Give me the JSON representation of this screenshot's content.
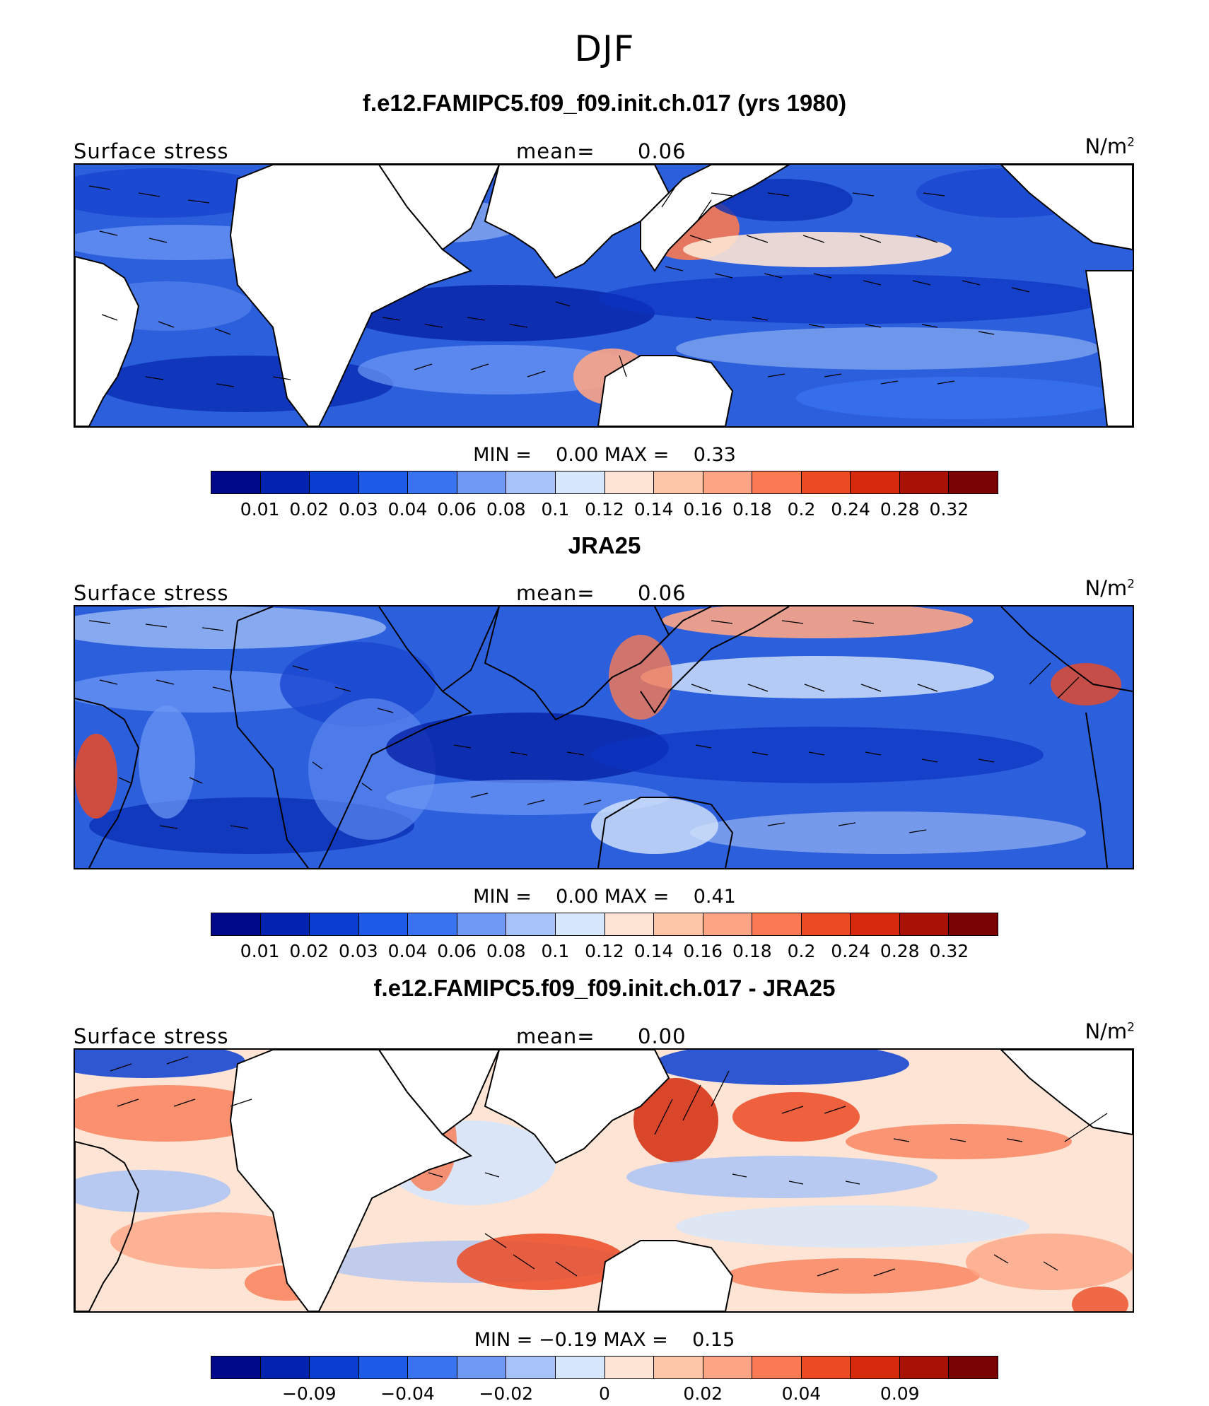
{
  "figure": {
    "season": "DJF"
  },
  "panels": [
    {
      "title": "f.e12.FAMIPC5.f09_f09.init.ch.017 (yrs 1980)",
      "field_label": "Surface stress",
      "mean_label": "mean=",
      "mean_value": "0.06",
      "unit": "N/m",
      "unit_exp": "2",
      "min_label": "MIN =",
      "min_value": "0.00",
      "max_label": "MAX =",
      "max_value": "0.33",
      "scheme": "abs"
    },
    {
      "title": "JRA25",
      "field_label": "Surface stress",
      "mean_label": "mean=",
      "mean_value": "0.06",
      "unit": "N/m",
      "unit_exp": "2",
      "min_label": "MIN =",
      "min_value": "0.00",
      "max_label": "MAX =",
      "max_value": "0.41",
      "scheme": "abs"
    },
    {
      "title": "f.e12.FAMIPC5.f09_f09.init.ch.017 - JRA25",
      "field_label": "Surface stress",
      "mean_label": "mean=",
      "mean_value": "0.00",
      "unit": "N/m",
      "unit_exp": "2",
      "min_label": "MIN =",
      "min_value": "−0.19",
      "max_label": "MAX =",
      "max_value": "0.15",
      "scheme": "diff"
    }
  ],
  "colorbars": {
    "abs": {
      "colors": [
        "#00088a",
        "#0422b0",
        "#0a3ed0",
        "#1e5ae8",
        "#3a73f0",
        "#6e9af5",
        "#a6c2f7",
        "#d6e6fb",
        "#fde4d4",
        "#fdc5a8",
        "#fca585",
        "#f97a52",
        "#ec4a23",
        "#d42a0b",
        "#a81205",
        "#7a0403"
      ],
      "ticks": [
        "0.01",
        "0.02",
        "0.03",
        "0.04",
        "0.06",
        "0.08",
        "0.1",
        "0.12",
        "0.14",
        "0.16",
        "0.18",
        "0.2",
        "0.24",
        "0.28",
        "0.32"
      ]
    },
    "diff": {
      "colors": [
        "#00088a",
        "#0422b0",
        "#0a3ed0",
        "#1e5ae8",
        "#3a73f0",
        "#6e9af5",
        "#a6c2f7",
        "#d6e6fb",
        "#fde4d4",
        "#fdc5a8",
        "#fca585",
        "#f97a52",
        "#ec4a23",
        "#d42a0b",
        "#a81205",
        "#7a0403"
      ],
      "ticks": [
        "−0.09",
        "−0.04",
        "−0.02",
        "0",
        "0.02",
        "0.04",
        "0.09"
      ]
    }
  }
}
